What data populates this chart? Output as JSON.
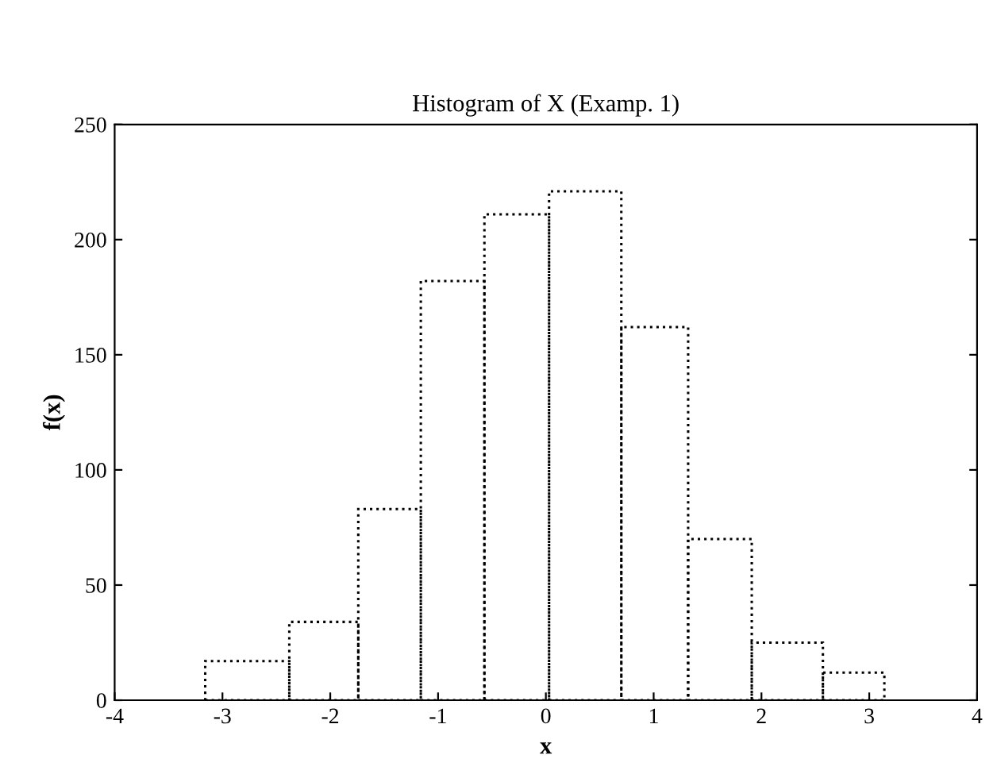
{
  "chart_data": {
    "type": "histogram",
    "title": "Histogram of X (Examp. 1)",
    "xlabel": "x",
    "ylabel": "f(x)",
    "bins": [
      -3.16,
      -2.38,
      -1.74,
      -1.16,
      -0.57,
      0.03,
      0.7,
      1.32,
      1.91,
      2.57,
      3.14
    ],
    "values": [
      17,
      34,
      83,
      182,
      211,
      221,
      162,
      70,
      25,
      12
    ],
    "color": "#000000",
    "line_style": "dotted",
    "xlim": [
      -4,
      4
    ],
    "ylim": [
      0,
      250
    ],
    "xticks": [
      -4,
      -3,
      -2,
      -1,
      0,
      1,
      2,
      3,
      4
    ],
    "yticks": [
      0,
      50,
      100,
      150,
      200,
      250
    ],
    "grid": false
  }
}
